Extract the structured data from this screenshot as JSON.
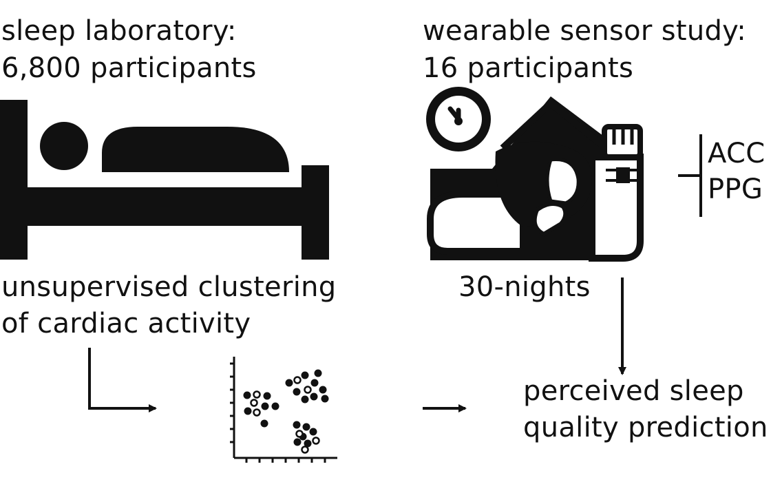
{
  "left": {
    "title_line1": "sleep laboratory:",
    "title_line2": "6,800 participants",
    "method_line1": "unsupervised clustering",
    "method_line2": "of cardiac activity"
  },
  "right": {
    "title_line1": "wearable sensor study:",
    "title_line2": "16 participants",
    "signal_1": "ACC",
    "signal_2": "PPG",
    "duration": "30-nights"
  },
  "outcome": {
    "line1": "perceived sleep",
    "line2": "quality prediction"
  },
  "icons": [
    "bed-icon",
    "sleeping-person-icon",
    "clock-icon",
    "wrist-sensor-icon",
    "scatter-clusters-icon"
  ],
  "colors": {
    "ink": "#111111",
    "background": "#ffffff"
  }
}
